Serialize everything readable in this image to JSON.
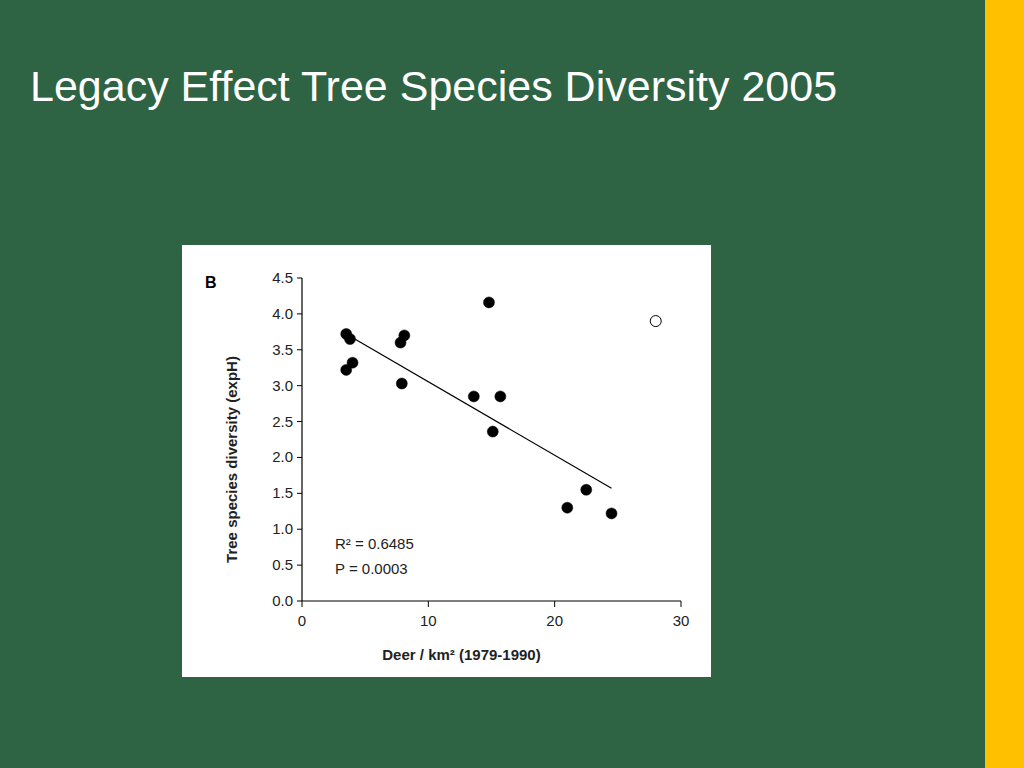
{
  "chart_data": {
    "type": "scatter",
    "title": "Legacy Effect Tree Species Diversity 2005",
    "panel_label": "B",
    "x_label": "Deer / km² (1979-1990)",
    "y_label": "Tree species diversity (expH)",
    "annotations": [
      "R² = 0.6485",
      "P = 0.0003"
    ],
    "series": [
      {
        "color": "#000000",
        "marker": "filled",
        "x": [
          3.5,
          3.8,
          3.5,
          4.0,
          7.8,
          8.1,
          7.9,
          14.8,
          13.6,
          15.7,
          15.1,
          22.5,
          21.0,
          24.5
        ],
        "values": [
          3.72,
          3.65,
          3.22,
          3.32,
          3.6,
          3.7,
          3.03,
          4.16,
          2.85,
          2.85,
          2.36,
          1.55,
          1.3,
          1.22
        ]
      },
      {
        "color": "#000000",
        "marker": "open",
        "x": [
          28.0
        ],
        "values": [
          3.9
        ]
      }
    ],
    "trend_line": {
      "x": [
        3.5,
        24.5
      ],
      "y": [
        3.72,
        1.57
      ]
    },
    "xlim": [
      0,
      30
    ],
    "xticks": [
      0,
      10,
      20,
      30
    ],
    "ylim": [
      0,
      4.5
    ],
    "yticks": [
      {
        "value": 0,
        "label": "0.0"
      },
      0.5,
      {
        "value": 1,
        "label": "1.0"
      },
      1.5,
      {
        "value": 2,
        "label": "2.0"
      },
      2.5,
      {
        "value": 3,
        "label": "3.0"
      },
      3.5,
      {
        "value": 4,
        "label": "4.0"
      },
      4.5
    ],
    "grid": false
  }
}
